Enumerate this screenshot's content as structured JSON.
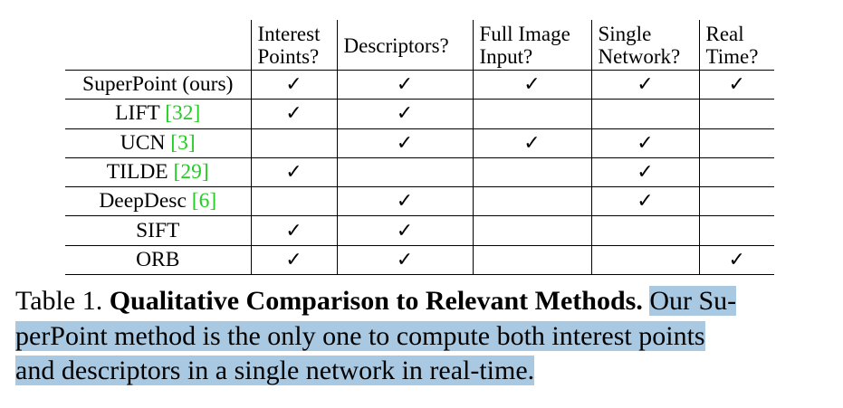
{
  "table": {
    "columns": [
      {
        "key": "interest_points",
        "lines": [
          "Interest",
          "Points?"
        ]
      },
      {
        "key": "descriptors",
        "lines": [
          "Descriptors?"
        ]
      },
      {
        "key": "full_image_input",
        "lines": [
          "Full Image",
          "Input?"
        ]
      },
      {
        "key": "single_network",
        "lines": [
          "Single",
          "Network?"
        ]
      },
      {
        "key": "real_time",
        "lines": [
          "Real",
          "Time?"
        ]
      }
    ],
    "check_symbol": "✓",
    "rows": [
      {
        "name": "SuperPoint (ours)",
        "ref": "",
        "checks": [
          true,
          true,
          true,
          true,
          true
        ]
      },
      {
        "name": "LIFT ",
        "ref": "[32]",
        "checks": [
          true,
          true,
          false,
          false,
          false
        ]
      },
      {
        "name": "UCN ",
        "ref": "[3]",
        "checks": [
          false,
          true,
          true,
          true,
          false
        ]
      },
      {
        "name": "TILDE ",
        "ref": "[29]",
        "checks": [
          true,
          false,
          false,
          true,
          false
        ]
      },
      {
        "name": "DeepDesc ",
        "ref": "[6]",
        "checks": [
          false,
          true,
          false,
          true,
          false
        ]
      },
      {
        "name": "SIFT",
        "ref": "",
        "checks": [
          true,
          true,
          false,
          false,
          false
        ]
      },
      {
        "name": "ORB",
        "ref": "",
        "checks": [
          true,
          true,
          false,
          false,
          true
        ]
      }
    ],
    "reference_color": "#22cc22"
  },
  "caption": {
    "label": "Table 1. ",
    "title": "Qualitative Comparison to Relevant Methods.",
    "line1_rest": "Our Su-",
    "line2": "perPoint method is the only one to compute both interest points",
    "line3": "and descriptors in a single network in real-time.",
    "highlight_color": "#a9c8e2"
  }
}
